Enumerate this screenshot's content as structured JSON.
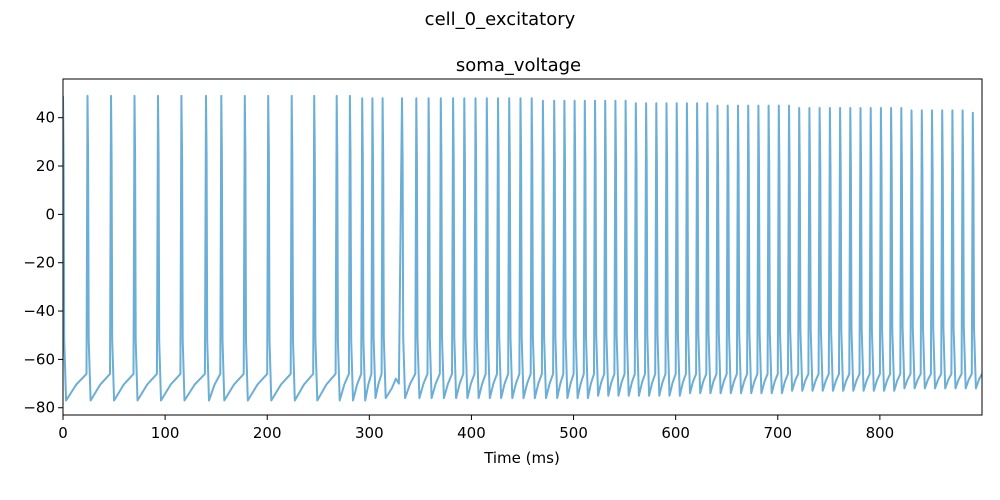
{
  "figure": {
    "suptitle": "cell_0_excitatory"
  },
  "chart_data": {
    "type": "line",
    "title": "soma_voltage",
    "xlabel": "Time (ms)",
    "ylabel": "",
    "xlim": [
      0,
      900
    ],
    "ylim": [
      -83,
      56
    ],
    "xticks": [
      0,
      100,
      200,
      300,
      400,
      500,
      600,
      700,
      800
    ],
    "yticks": [
      -80,
      -60,
      -40,
      -20,
      0,
      20,
      40
    ],
    "grid": false,
    "series": [
      {
        "color": "#6baed6",
        "spike_times": [
          0,
          24,
          47,
          70,
          93,
          116,
          140,
          155,
          178,
          201,
          224,
          246,
          268,
          281,
          293,
          303,
          313,
          332,
          346,
          358,
          370,
          382,
          393,
          404,
          415,
          426,
          437,
          448,
          459,
          470,
          481,
          491,
          501,
          511,
          521,
          531,
          541,
          551,
          561,
          571,
          581,
          591,
          601,
          611,
          621,
          631,
          641,
          651,
          661,
          671,
          681,
          691,
          701,
          711,
          721,
          731,
          741,
          751,
          761,
          771,
          781,
          791,
          801,
          811,
          821,
          831,
          841,
          851,
          861,
          871,
          881,
          891
        ],
        "spike_peaks": [
          49,
          49,
          49,
          49,
          49,
          49,
          49,
          49,
          49,
          49,
          49,
          49,
          49,
          49,
          48,
          48,
          48,
          48,
          48,
          48,
          48,
          48,
          48,
          48,
          48,
          48,
          48,
          48,
          48,
          47,
          47,
          47,
          47,
          47,
          47,
          47,
          47,
          47,
          46,
          46,
          46,
          46,
          46,
          46,
          46,
          46,
          45,
          45,
          45,
          45,
          45,
          45,
          45,
          45,
          44,
          44,
          44,
          44,
          44,
          44,
          44,
          44,
          44,
          44,
          44,
          43,
          43,
          43,
          43,
          43,
          43,
          42
        ],
        "trough_min": [
          -77,
          -77,
          -77,
          -77,
          -77,
          -77,
          -77,
          -77,
          -77,
          -77,
          -77,
          -77,
          -77,
          -77,
          -77,
          -76,
          -76,
          -76,
          -76,
          -76,
          -76,
          -76,
          -76,
          -76,
          -76,
          -76,
          -76,
          -76,
          -76,
          -76,
          -76,
          -76,
          -76,
          -76,
          -75,
          -75,
          -75,
          -75,
          -75,
          -75,
          -75,
          -75,
          -75,
          -74,
          -74,
          -74,
          -74,
          -74,
          -74,
          -74,
          -74,
          -74,
          -74,
          -73,
          -73,
          -73,
          -73,
          -73,
          -73,
          -73,
          -73,
          -73,
          -73,
          -73,
          -72,
          -72,
          -72,
          -72,
          -72,
          -72,
          -72,
          -72
        ],
        "pre_spike_level": -66,
        "bump": {
          "t": 326,
          "v": -68
        }
      }
    ]
  }
}
